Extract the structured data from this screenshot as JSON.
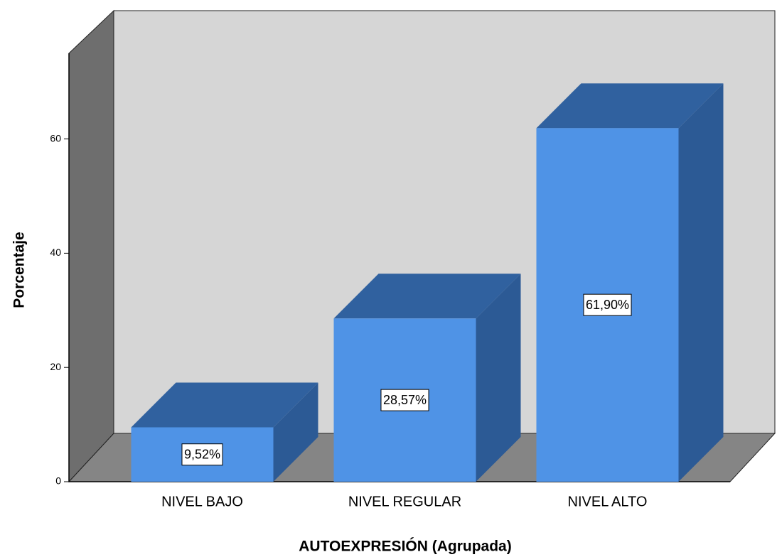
{
  "chart_data": {
    "type": "bar3d",
    "categories": [
      "NIVEL BAJO",
      "NIVEL REGULAR",
      "NIVEL ALTO"
    ],
    "values": [
      9.52,
      28.57,
      61.9
    ],
    "value_labels": [
      "9,52%",
      "28,57%",
      "61,90%"
    ],
    "color": "#4f93e6",
    "y_label": "Porcentaje",
    "x_label": "AUTOEXPRESIÓN (Agrupada)",
    "ylim": [
      0,
      75
    ],
    "yticks": [
      0,
      20,
      40,
      60
    ]
  }
}
